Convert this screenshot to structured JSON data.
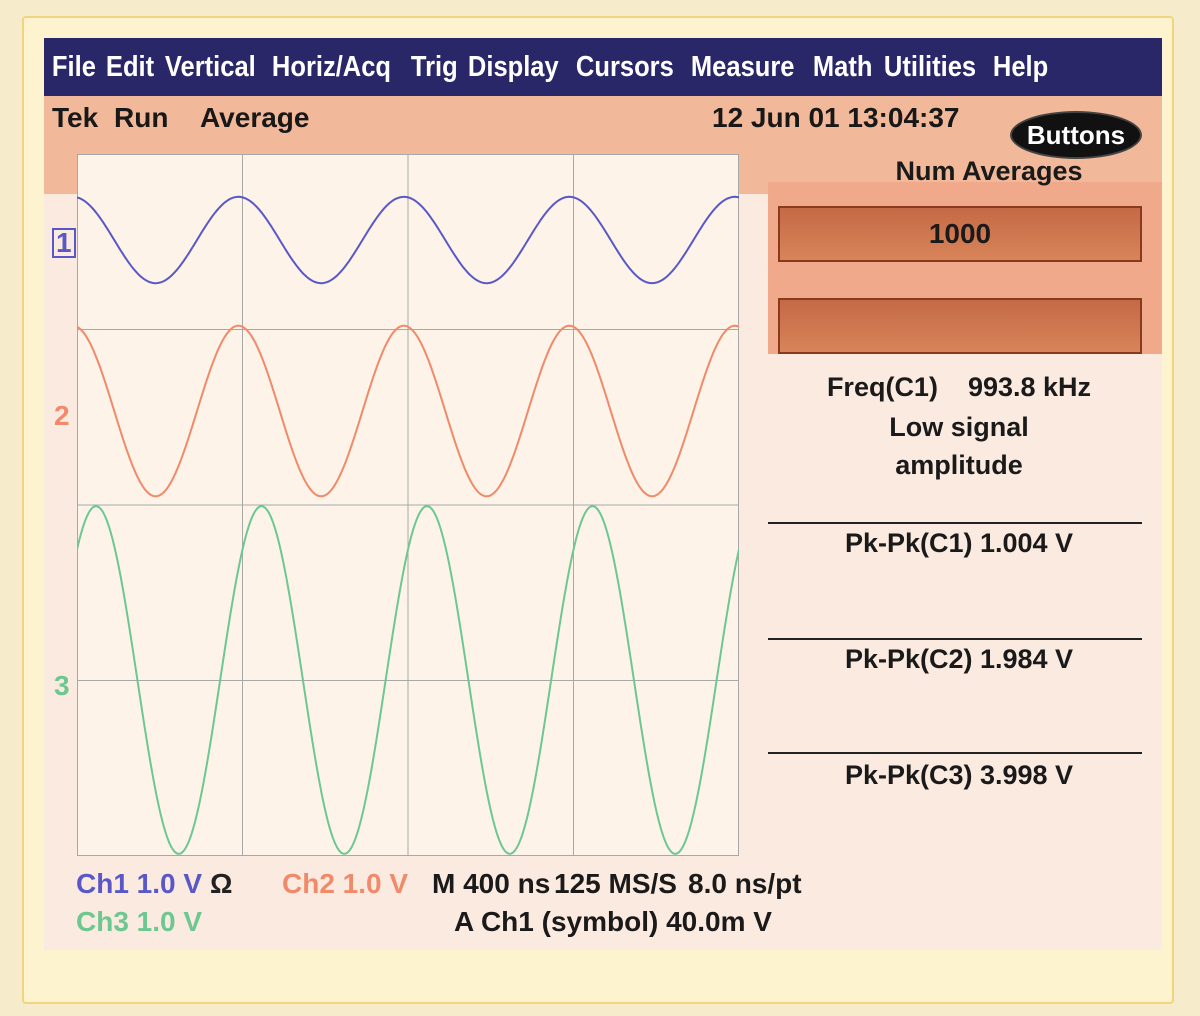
{
  "menu": [
    "File",
    "Edit",
    "Vertical",
    "Horiz/Acq",
    "Trig",
    "Display",
    "Cursors",
    "Measure",
    "Math",
    "Utilities",
    "Help"
  ],
  "status": {
    "brand": "Tek",
    "run": "Run",
    "mode": "Average",
    "datetime": "12 Jun 01 13:04:37"
  },
  "side": {
    "buttons_label": "Buttons",
    "num_averages_label": "Num Averages",
    "num_averages_value": "1000",
    "empty_box_value": ""
  },
  "measurements": {
    "freq_label": "Freq(C1)",
    "freq_value": "993.8 kHz",
    "warning_line1": "Low signal",
    "warning_line2": "amplitude",
    "pkpk_c1": "Pk-Pk(C1) 1.004 V",
    "pkpk_c2": "Pk-Pk(C2) 1.984 V",
    "pkpk_c3": "Pk-Pk(C3) 3.998 V"
  },
  "channels": [
    {
      "id": "1",
      "color": "#5a58c8",
      "scale": "Ch1 1.0 V",
      "symbol": "Ω",
      "pkpk_v": 1.004,
      "cycles": 4
    },
    {
      "id": "2",
      "color": "#f08a6a",
      "scale": "Ch2 1.0 V",
      "pkpk_v": 1.984,
      "cycles": 4
    },
    {
      "id": "3",
      "color": "#6cc890",
      "scale": "Ch3 1.0 V",
      "pkpk_v": 3.998,
      "cycles": 4
    }
  ],
  "horizontal": {
    "timebase": "M 400 ns",
    "sample_rate": "125 MS/S",
    "resolution": "8.0 ns/pt"
  },
  "trigger": {
    "readout": "A Ch1 (symbol) 40.0m V"
  },
  "colors": {
    "menubar": "#2a2769",
    "status": "#f2b89a",
    "grid": "#a8a8a8"
  }
}
